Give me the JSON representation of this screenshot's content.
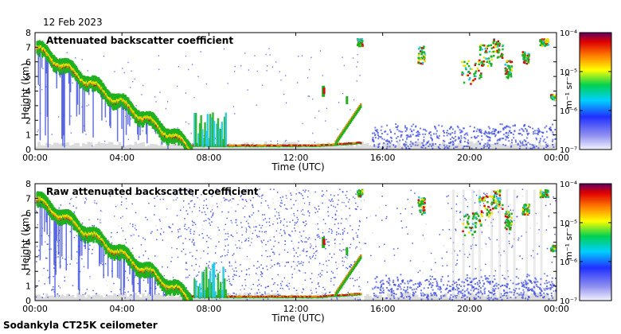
{
  "date": "12 Feb 2023",
  "footer": "Sodankyla CT25K ceilometer",
  "chart_data": [
    {
      "type": "heatmap",
      "title": "Attenuated backscatter coefficient",
      "xlabel": "Time (UTC)",
      "ylabel": "Height (km)",
      "xticks": [
        "00:00",
        "04:00",
        "08:00",
        "12:00",
        "16:00",
        "20:00",
        "00:00"
      ],
      "xlim_hours": [
        0,
        24
      ],
      "ylim": [
        0,
        8
      ],
      "yticks": [
        "0",
        "1",
        "2",
        "3",
        "4",
        "5",
        "6",
        "7",
        "8"
      ],
      "colorbar": {
        "unit_label": "m⁻¹ sr⁻¹",
        "scale": "log",
        "range": [
          1e-07,
          0.0001
        ],
        "ticks": [
          "10⁻⁴",
          "10⁻⁵",
          "10⁻⁶",
          "10⁻⁷"
        ]
      },
      "features": [
        {
          "name": "descending cloud/precip layer",
          "hours": [
            0,
            7.2
          ],
          "height_km": [
            7.2,
            0.3
          ]
        },
        {
          "name": "low stratus",
          "hours": [
            7.5,
            15
          ],
          "height_km": [
            0.1,
            0.4
          ]
        },
        {
          "name": "high cloud patches",
          "hours": [
            17.5,
            24
          ],
          "height_km": [
            4,
            7.5
          ]
        },
        {
          "name": "noise near surface",
          "hours": [
            16,
            24
          ],
          "height_km": [
            0,
            1.5
          ]
        }
      ]
    },
    {
      "type": "heatmap",
      "title": "Raw attenuated backscatter coefficient",
      "xlabel": "Time (UTC)",
      "ylabel": "Height (km)",
      "xticks": [
        "00:00",
        "04:00",
        "08:00",
        "12:00",
        "16:00",
        "20:00",
        "00:00"
      ],
      "xlim_hours": [
        0,
        24
      ],
      "ylim": [
        0,
        8
      ],
      "yticks": [
        "0",
        "1",
        "2",
        "3",
        "4",
        "5",
        "6",
        "7",
        "8"
      ],
      "colorbar": {
        "unit_label": "m⁻¹ sr⁻¹",
        "scale": "log",
        "range": [
          1e-07,
          0.0001
        ],
        "ticks": [
          "10⁻⁴",
          "10⁻⁵",
          "10⁻⁶",
          "10⁻⁷"
        ]
      },
      "features": [
        {
          "name": "descending cloud/precip layer",
          "hours": [
            0,
            7.2
          ],
          "height_km": [
            7.2,
            0.3
          ]
        },
        {
          "name": "dense noise band",
          "hours": [
            7,
            15
          ],
          "height_km": [
            0,
            7.5
          ]
        },
        {
          "name": "high cloud patches",
          "hours": [
            17.5,
            24
          ],
          "height_km": [
            4,
            7.5
          ]
        }
      ]
    }
  ],
  "colors": {
    "gray": "#d8d8d8",
    "blue": "#3f4fe0",
    "cyan": "#22c7e0",
    "green": "#20b020",
    "yellow": "#f0e000",
    "orange": "#ff8000",
    "red": "#d01010",
    "darkred": "#800000"
  }
}
